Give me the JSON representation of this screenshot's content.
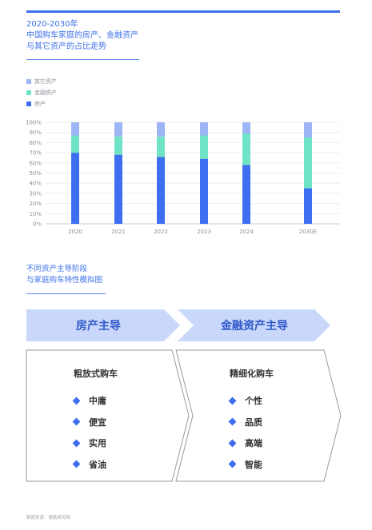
{
  "title": {
    "line1": "2020-2030年",
    "line2": "中国购车家庭的房产、金融资产",
    "line3": "与其它资产的占比走势"
  },
  "legend": [
    {
      "label": "其它资产",
      "color": "#9db5f5"
    },
    {
      "label": "金融资产",
      "color": "#6fe3c6"
    },
    {
      "label": "房产",
      "color": "#3d6ff0"
    }
  ],
  "chart_data": {
    "type": "bar",
    "stacked": true,
    "categories": [
      "2020",
      "2021",
      "2022",
      "2023",
      "2024",
      "2030E"
    ],
    "series": [
      {
        "name": "房产",
        "color": "#3d6ff0",
        "values": [
          70,
          68,
          66,
          64,
          58,
          35
        ]
      },
      {
        "name": "金融资产",
        "color": "#6fe3c6",
        "values": [
          17,
          18,
          20,
          23,
          31,
          50
        ]
      },
      {
        "name": "其它资产",
        "color": "#9db5f5",
        "values": [
          13,
          14,
          14,
          13,
          11,
          15
        ]
      }
    ],
    "yticks": [
      "0%",
      "10%",
      "20%",
      "30%",
      "40%",
      "50%",
      "60%",
      "70%",
      "80%",
      "90%",
      "100%"
    ],
    "ylim": [
      0,
      100
    ],
    "grid": true,
    "legend_position": "top-left"
  },
  "section2": {
    "line1": "不同资产主导阶段",
    "line2": "与家庭购车特性模拟图"
  },
  "stages": [
    {
      "label": "房产主导",
      "title": "粗放式购车",
      "items": [
        "中庸",
        "便宜",
        "实用",
        "省油"
      ]
    },
    {
      "label": "金融资产主导",
      "title": "精细化购车",
      "items": [
        "个性",
        "品质",
        "高端",
        "智能"
      ]
    }
  ],
  "footer": "数据来源：德勤研究院"
}
